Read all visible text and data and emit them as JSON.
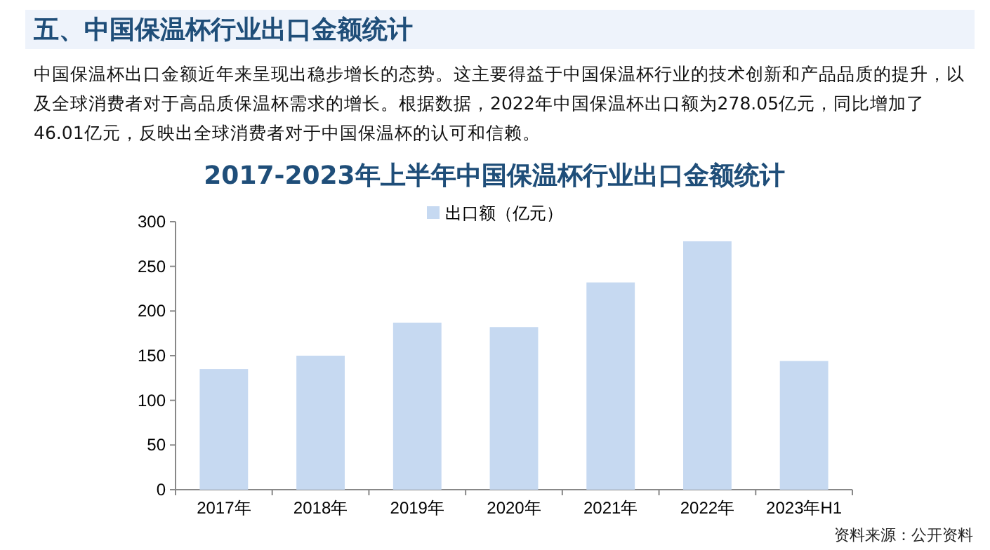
{
  "chart_data": {
    "type": "bar",
    "title": "五、中国保温杯行业出口金额统计",
    "subtitle": "2017-2023年上半年中国保温杯行业出口金额统计",
    "annotations": [
      "中国保温杯出口金额近年来呈现出稳步增长的态势。这主要得益于中国保温杯行业的技术创新和产品品质的提升，以及全球消费者对于高品质保温杯需求的增长。根据数据，2022年中国保温杯出口额为278.05亿元，同比增加了46.01亿元，反映出全球消费者对于中国保温杯的认可和信赖。",
      "资料来源：公开资料"
    ],
    "categories": [
      "2017年",
      "2018年",
      "2019年",
      "2020年",
      "2021年",
      "2022年",
      "2023年H1"
    ],
    "series": [
      {
        "name": "出口额（亿元）",
        "color": "#c6d9f1",
        "values": [
          135,
          150,
          187,
          182,
          232,
          278.05,
          144
        ]
      }
    ],
    "ylim": [
      0,
      300
    ],
    "yticks": [
      0,
      50,
      100,
      150,
      200,
      250,
      300
    ],
    "legend": "top"
  }
}
